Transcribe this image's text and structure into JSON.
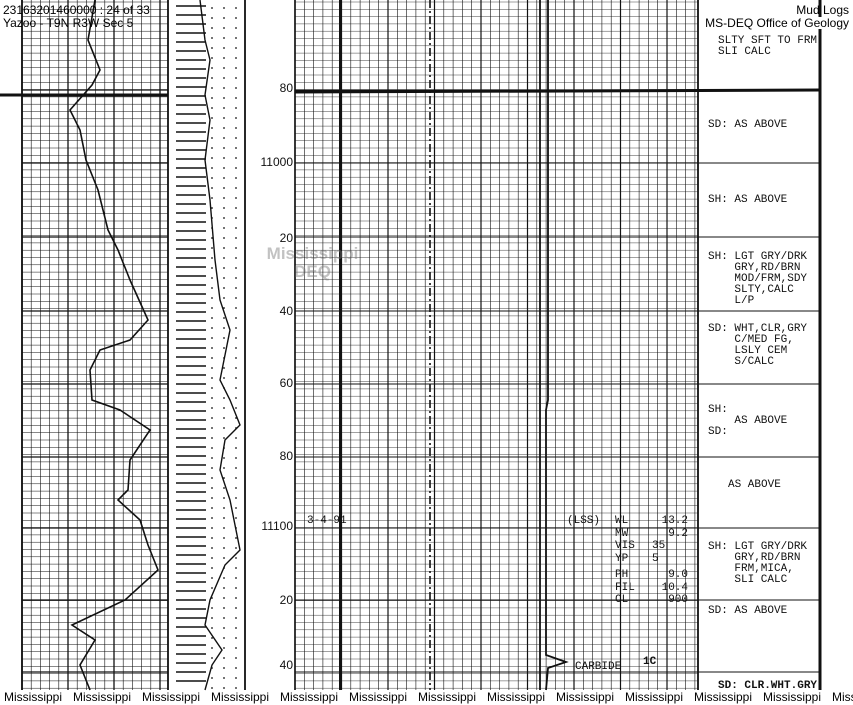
{
  "header": {
    "file_id": "23163201460000 : 24 of 33",
    "location": "Yazoo - T9N R3W Sec 5",
    "collection": "Mud Logs",
    "office": "MS-DEQ Office of Geology"
  },
  "watermark": {
    "line1": "Mississippi",
    "line2": "DEQ"
  },
  "depth_labels": [
    "80",
    "11000",
    "20",
    "40",
    "60",
    "80",
    "11100",
    "20",
    "40"
  ],
  "descriptions": [
    "SLTY SFT TO FRM\nSLI CALC",
    "SD: AS ABOVE",
    "SH: AS ABOVE",
    "SH: LGT GRY/DRK\n    GRY,RD/BRN\n    MOD/FRM,SDY\n    SLTY,CALC\n    L/P",
    "SD: WHT,CLR,GRY\n    C/MED FG,\n    LSLY CEM\n    S/CALC",
    "SH:\n    AS ABOVE\nSD:",
    "AS ABOVE",
    "SH: LGT GRY/DRK\n    GRY,RD/BRN\n    FRM,MICA,\n    SLI CALC",
    "SD: AS ABOVE",
    "SD: CLR.WHT.GRY"
  ],
  "annotations": {
    "date": "3-4-91",
    "lss": "(LSS)",
    "carbide": "CARBIDE",
    "carbide_value": "1C"
  },
  "mud_properties": [
    {
      "label": "WL",
      "value": "13.2"
    },
    {
      "label": "MW",
      "value": "9.2"
    },
    {
      "label": "VIS",
      "value": "35"
    },
    {
      "label": "YP",
      "value": "5"
    },
    {
      "label": "PH",
      "value": "9.0"
    },
    {
      "label": "FIL",
      "value": "10.4"
    },
    {
      "label": "CL",
      "value": "900"
    }
  ],
  "footer": [
    "Mississippi",
    "Mississippi",
    "Mississippi",
    "Mississippi",
    "Mississippi",
    "Mississippi",
    "Mississippi",
    "Mississippi",
    "Mississippi",
    "Mississippi",
    "Mississippi",
    "Mississippi",
    "Mississippi"
  ]
}
